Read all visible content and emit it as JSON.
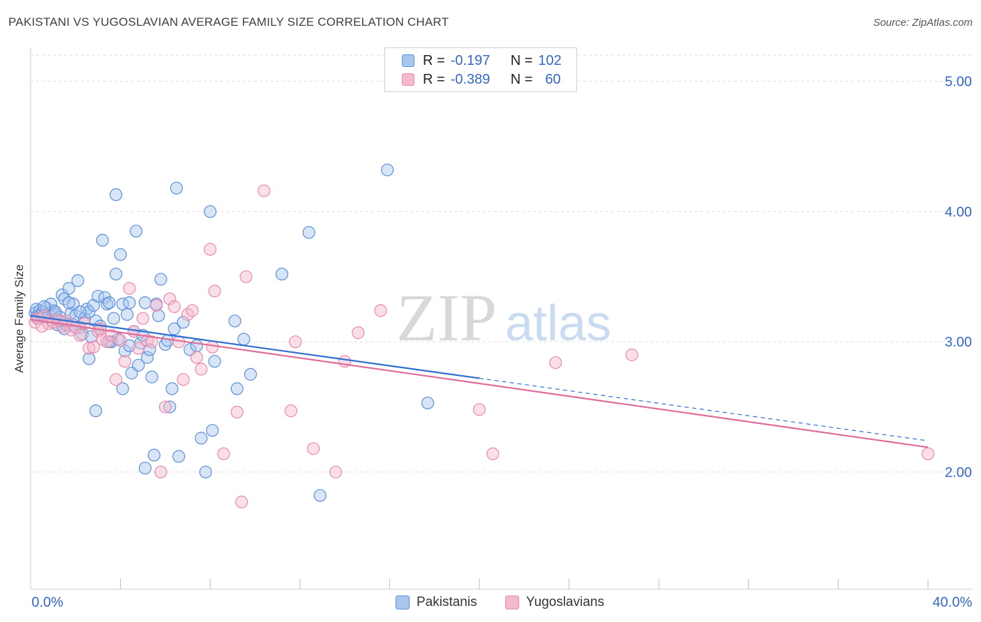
{
  "title": "PAKISTANI VS YUGOSLAVIAN AVERAGE FAMILY SIZE CORRELATION CHART",
  "source": "Source: ZipAtlas.com",
  "watermark": {
    "zip": "ZIP",
    "atlas": "atlas"
  },
  "legend": {
    "rows": [
      {
        "r_label": "R =",
        "r_value": "-0.197",
        "n_label": "N =",
        "n_value": "102"
      },
      {
        "r_label": "R =",
        "r_value": "-0.389",
        "n_label": "N =",
        "n_value": "60"
      }
    ]
  },
  "bottom_legend": {
    "pakistanis": "Pakistanis",
    "yugoslavians": "Yugoslavians"
  },
  "colors": {
    "pakistanis_fill": "#a9c6ee",
    "pakistanis_stroke": "#5b8fd9",
    "pakistanis_line": "#2f6fd1",
    "yugoslavians_fill": "#f4b9cd",
    "yugoslavians_stroke": "#e98aab",
    "yugoslavians_line": "#e06c98",
    "axis_text": "#3466c9",
    "grid": "#dddddd"
  },
  "chart_data": {
    "type": "scatter",
    "title": "PAKISTANI VS YUGOSLAVIAN AVERAGE FAMILY SIZE CORRELATION CHART",
    "xlabel": "",
    "ylabel": "Average Family Size",
    "xlim": [
      0,
      40
    ],
    "ylim": [
      1.1,
      5.25
    ],
    "x_tick_labels": [
      "0.0%",
      "40.0%"
    ],
    "y_ticks": [
      2.0,
      3.0,
      4.0,
      5.0
    ],
    "y_tick_labels": [
      "2.00",
      "3.00",
      "4.00",
      "5.00"
    ],
    "grid": true,
    "legend_position": "top-center",
    "series": [
      {
        "name": "Pakistanis",
        "r": -0.197,
        "n": 102,
        "trend": {
          "x0": 0,
          "y0": 3.2,
          "x1": 40,
          "y1": 2.24,
          "solid_until_x": 20
        },
        "points": [
          [
            0.2,
            3.22
          ],
          [
            0.25,
            3.25
          ],
          [
            0.3,
            3.2
          ],
          [
            0.35,
            3.18
          ],
          [
            0.4,
            3.24
          ],
          [
            0.45,
            3.21
          ],
          [
            0.5,
            3.19
          ],
          [
            0.55,
            3.23
          ],
          [
            0.6,
            3.2
          ],
          [
            0.7,
            3.26
          ],
          [
            0.75,
            3.19
          ],
          [
            0.8,
            3.22
          ],
          [
            0.9,
            3.17
          ],
          [
            1.0,
            3.24
          ],
          [
            1.1,
            3.21
          ],
          [
            1.2,
            3.13
          ],
          [
            1.3,
            3.19
          ],
          [
            1.4,
            3.36
          ],
          [
            1.5,
            3.33
          ],
          [
            1.6,
            3.13
          ],
          [
            1.7,
            3.41
          ],
          [
            1.8,
            3.22
          ],
          [
            1.9,
            3.13
          ],
          [
            2.0,
            3.2
          ],
          [
            2.1,
            3.47
          ],
          [
            2.2,
            3.11
          ],
          [
            2.3,
            3.06
          ],
          [
            2.4,
            3.18
          ],
          [
            2.5,
            3.25
          ],
          [
            2.6,
            3.23
          ],
          [
            2.7,
            3.04
          ],
          [
            2.8,
            3.28
          ],
          [
            2.9,
            3.16
          ],
          [
            3.0,
            3.35
          ],
          [
            3.1,
            3.12
          ],
          [
            3.2,
            3.78
          ],
          [
            3.3,
            3.34
          ],
          [
            3.4,
            3.29
          ],
          [
            3.5,
            3.3
          ],
          [
            3.6,
            3.0
          ],
          [
            3.7,
            3.18
          ],
          [
            3.8,
            3.52
          ],
          [
            3.9,
            3.02
          ],
          [
            4.0,
            3.67
          ],
          [
            4.1,
            3.29
          ],
          [
            4.2,
            2.93
          ],
          [
            4.3,
            3.21
          ],
          [
            4.4,
            3.3
          ],
          [
            4.5,
            2.76
          ],
          [
            4.6,
            3.08
          ],
          [
            4.7,
            3.85
          ],
          [
            4.8,
            2.82
          ],
          [
            4.9,
            2.99
          ],
          [
            5.0,
            3.05
          ],
          [
            5.1,
            3.3
          ],
          [
            5.2,
            2.88
          ],
          [
            5.3,
            2.94
          ],
          [
            5.4,
            2.73
          ],
          [
            5.5,
            2.13
          ],
          [
            5.6,
            3.29
          ],
          [
            5.7,
            3.2
          ],
          [
            5.8,
            3.48
          ],
          [
            6.0,
            2.98
          ],
          [
            6.1,
            3.01
          ],
          [
            6.2,
            2.5
          ],
          [
            6.3,
            2.64
          ],
          [
            6.4,
            3.1
          ],
          [
            6.5,
            4.18
          ],
          [
            6.6,
            2.12
          ],
          [
            6.8,
            3.15
          ],
          [
            7.1,
            2.94
          ],
          [
            7.4,
            2.97
          ],
          [
            7.6,
            2.26
          ],
          [
            7.8,
            2.0
          ],
          [
            8.0,
            4.0
          ],
          [
            8.1,
            2.32
          ],
          [
            8.2,
            2.85
          ],
          [
            9.1,
            3.16
          ],
          [
            9.2,
            2.64
          ],
          [
            9.5,
            3.02
          ],
          [
            9.8,
            2.75
          ],
          [
            11.2,
            3.52
          ],
          [
            12.4,
            3.84
          ],
          [
            12.9,
            1.82
          ],
          [
            15.9,
            4.32
          ],
          [
            17.7,
            2.53
          ],
          [
            3.8,
            4.13
          ],
          [
            2.9,
            2.47
          ],
          [
            4.1,
            2.64
          ],
          [
            5.1,
            2.03
          ],
          [
            1.9,
            3.29
          ],
          [
            1.5,
            3.1
          ],
          [
            0.9,
            3.29
          ],
          [
            1.1,
            3.23
          ],
          [
            2.6,
            2.87
          ],
          [
            3.5,
            3.0
          ],
          [
            1.3,
            3.16
          ],
          [
            2.2,
            3.23
          ],
          [
            0.6,
            3.27
          ],
          [
            4.4,
            2.97
          ],
          [
            1.7,
            3.3
          ],
          [
            2.0,
            3.11
          ]
        ]
      },
      {
        "name": "Yugoslavians",
        "r": -0.389,
        "n": 60,
        "trend": {
          "x0": 0,
          "y0": 3.17,
          "x1": 40,
          "y1": 2.19
        },
        "points": [
          [
            0.2,
            3.15
          ],
          [
            0.3,
            3.18
          ],
          [
            0.5,
            3.12
          ],
          [
            0.6,
            3.2
          ],
          [
            0.8,
            3.14
          ],
          [
            1.0,
            3.15
          ],
          [
            1.2,
            3.17
          ],
          [
            1.4,
            3.12
          ],
          [
            1.6,
            3.16
          ],
          [
            1.8,
            3.09
          ],
          [
            2.0,
            3.11
          ],
          [
            2.2,
            3.05
          ],
          [
            2.4,
            3.14
          ],
          [
            2.6,
            2.95
          ],
          [
            2.8,
            2.96
          ],
          [
            3.0,
            3.08
          ],
          [
            3.2,
            3.02
          ],
          [
            3.4,
            3.0
          ],
          [
            3.6,
            3.05
          ],
          [
            3.8,
            2.71
          ],
          [
            4.0,
            3.01
          ],
          [
            4.2,
            2.85
          ],
          [
            4.4,
            3.41
          ],
          [
            4.6,
            3.08
          ],
          [
            4.8,
            2.95
          ],
          [
            5.0,
            3.18
          ],
          [
            5.2,
            3.01
          ],
          [
            5.4,
            3.0
          ],
          [
            5.6,
            3.28
          ],
          [
            5.8,
            2.0
          ],
          [
            6.0,
            2.5
          ],
          [
            6.2,
            3.33
          ],
          [
            6.4,
            3.27
          ],
          [
            6.6,
            3.0
          ],
          [
            6.8,
            2.71
          ],
          [
            7.0,
            3.21
          ],
          [
            7.2,
            3.24
          ],
          [
            7.4,
            2.88
          ],
          [
            7.6,
            2.79
          ],
          [
            8.0,
            3.71
          ],
          [
            8.2,
            3.39
          ],
          [
            8.6,
            2.14
          ],
          [
            9.2,
            2.46
          ],
          [
            9.4,
            1.77
          ],
          [
            9.6,
            3.5
          ],
          [
            10.4,
            4.16
          ],
          [
            11.6,
            2.47
          ],
          [
            11.8,
            3.0
          ],
          [
            12.6,
            2.18
          ],
          [
            13.6,
            2.0
          ],
          [
            14.0,
            2.85
          ],
          [
            14.6,
            3.07
          ],
          [
            15.6,
            3.24
          ],
          [
            20.0,
            2.48
          ],
          [
            20.6,
            2.14
          ],
          [
            23.4,
            2.84
          ],
          [
            26.8,
            2.9
          ],
          [
            40.0,
            2.14
          ],
          [
            8.1,
            2.96
          ],
          [
            3.1,
            3.1
          ]
        ]
      }
    ]
  }
}
